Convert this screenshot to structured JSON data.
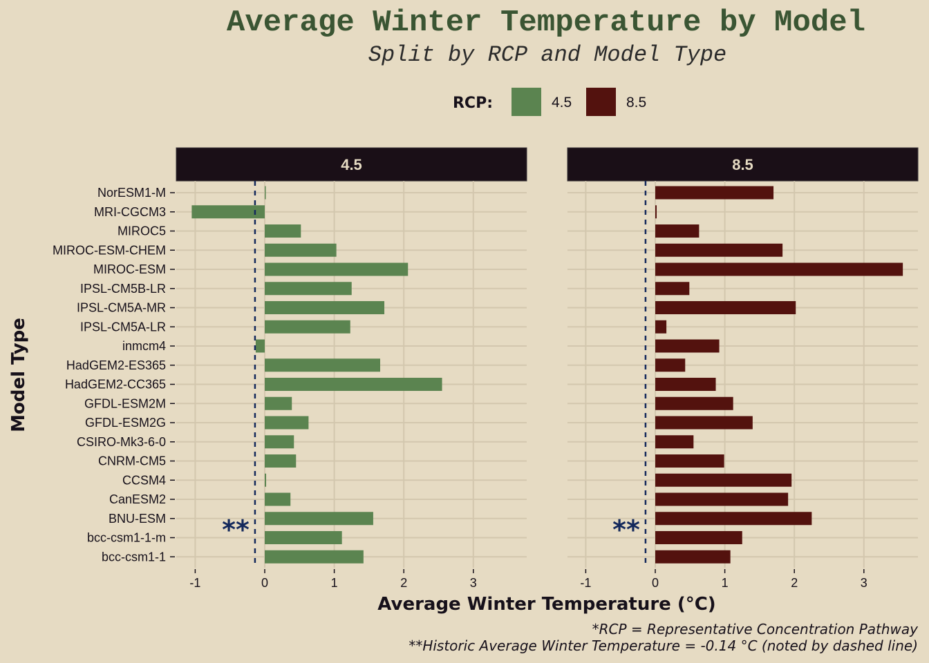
{
  "chart_data": {
    "type": "bar",
    "orientation": "horizontal",
    "title": "Average Winter Temperature by Model",
    "subtitle": "Split by RCP and Model Type",
    "xlabel": "Average Winter Temperature (°C)",
    "ylabel": "Model Type",
    "xlim": [
      -1.25,
      3.8
    ],
    "xticks": [
      -1,
      0,
      1,
      2,
      3
    ],
    "grid": true,
    "legend": {
      "title": "RCP:",
      "position": "top"
    },
    "categories": [
      "NorESM1-M",
      "MRI-CGCM3",
      "MIROC5",
      "MIROC-ESM-CHEM",
      "MIROC-ESM",
      "IPSL-CM5B-LR",
      "IPSL-CM5A-MR",
      "IPSL-CM5A-LR",
      "inmcm4",
      "HadGEM2-ES365",
      "HadGEM2-CC365",
      "GFDL-ESM2M",
      "GFDL-ESM2G",
      "CSIRO-Mk3-6-0",
      "CNRM-CM5",
      "CCSM4",
      "CanESM2",
      "BNU-ESM",
      "bcc-csm1-1-m",
      "bcc-csm1-1"
    ],
    "series": [
      {
        "name": "4.5",
        "panel": "4.5",
        "color": "#5b8450",
        "values": [
          0.01,
          -1.05,
          0.52,
          1.03,
          2.06,
          1.25,
          1.72,
          1.23,
          -0.13,
          1.66,
          2.55,
          0.39,
          0.63,
          0.42,
          0.45,
          0.02,
          0.37,
          1.56,
          1.11,
          1.42
        ]
      },
      {
        "name": "8.5",
        "panel": "8.5",
        "color": "#53120e",
        "values": [
          1.7,
          0.02,
          0.63,
          1.83,
          3.56,
          0.49,
          2.02,
          0.16,
          0.92,
          0.43,
          0.87,
          1.12,
          1.4,
          0.55,
          0.99,
          1.96,
          1.91,
          2.25,
          1.25,
          1.08
        ]
      }
    ],
    "reference_line": {
      "value": -0.14,
      "color": "#14295c",
      "marker_text": "**"
    },
    "captions": [
      "*RCP = Representative Concentration Pathway",
      "**Historic Average Winter Temperature = -0.14 °C (noted by dashed line)"
    ]
  },
  "colors": {
    "background": "#e6dbc3",
    "strip": "#1a0f17",
    "grid": "#d3c7ae",
    "title": "#3a5533"
  }
}
